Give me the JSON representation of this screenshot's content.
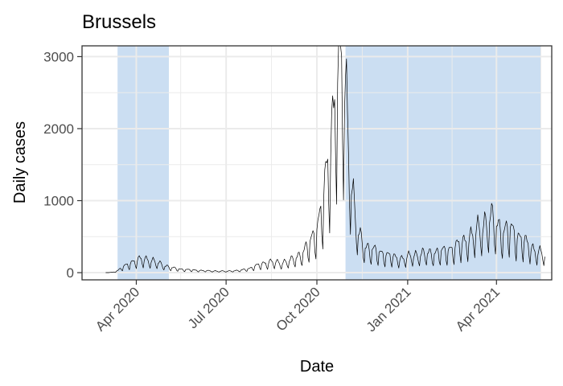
{
  "chart_data": {
    "type": "line",
    "title": "Brussels",
    "xlabel": "Date",
    "ylabel": "Daily cases",
    "xlim": [
      "2020-02-06",
      "2021-05-27"
    ],
    "ylim": [
      -100,
      3150
    ],
    "y_ticks": [
      0,
      1000,
      2000,
      3000
    ],
    "y_tick_labels": [
      "0",
      "1000",
      "2000",
      "3000"
    ],
    "x_ticks": [
      "2020-04-01",
      "2020-07-01",
      "2020-10-01",
      "2021-01-01",
      "2021-04-01"
    ],
    "x_tick_labels": [
      "Apr 2020",
      "Jul 2020",
      "Oct 2020",
      "Jan 2021",
      "Apr 2021"
    ],
    "grid": true,
    "colors": {
      "line": "#000000",
      "shade": "#a8c8ea",
      "grid": "#ebebeb",
      "border": "#333333"
    },
    "shaded_periods": [
      {
        "start": "2020-03-13",
        "end": "2020-05-04"
      },
      {
        "start": "2020-10-30",
        "end": "2021-05-16"
      }
    ],
    "series": [
      {
        "points": [
          [
            "2020-03-01",
            0
          ],
          [
            "2020-03-08",
            5
          ],
          [
            "2020-03-13",
            25
          ],
          [
            "2020-03-18",
            70
          ],
          [
            "2020-03-24",
            110
          ],
          [
            "2020-03-29",
            145
          ],
          [
            "2020-04-03",
            165
          ],
          [
            "2020-04-08",
            175
          ],
          [
            "2020-04-13",
            170
          ],
          [
            "2020-04-18",
            150
          ],
          [
            "2020-04-24",
            120
          ],
          [
            "2020-04-30",
            90
          ],
          [
            "2020-05-06",
            65
          ],
          [
            "2020-05-12",
            50
          ],
          [
            "2020-05-20",
            40
          ],
          [
            "2020-06-01",
            30
          ],
          [
            "2020-06-15",
            22
          ],
          [
            "2020-07-01",
            18
          ],
          [
            "2020-07-15",
            28
          ],
          [
            "2020-07-25",
            55
          ],
          [
            "2020-08-05",
            110
          ],
          [
            "2020-08-15",
            140
          ],
          [
            "2020-08-25",
            125
          ],
          [
            "2020-09-05",
            160
          ],
          [
            "2020-09-15",
            240
          ],
          [
            "2020-09-22",
            340
          ],
          [
            "2020-09-27",
            460
          ],
          [
            "2020-10-02",
            620
          ],
          [
            "2020-10-07",
            900
          ],
          [
            "2020-10-12",
            1350
          ],
          [
            "2020-10-17",
            1950
          ],
          [
            "2020-10-20",
            2450
          ],
          [
            "2020-10-22",
            2800
          ],
          [
            "2020-10-24",
            2950
          ],
          [
            "2020-10-27",
            2650
          ],
          [
            "2020-10-30",
            2300
          ],
          [
            "2020-11-02",
            1750
          ],
          [
            "2020-11-05",
            1200
          ],
          [
            "2020-11-08",
            800
          ],
          [
            "2020-11-12",
            500
          ],
          [
            "2020-11-17",
            360
          ],
          [
            "2020-11-24",
            300
          ],
          [
            "2020-12-01",
            270
          ],
          [
            "2020-12-10",
            230
          ],
          [
            "2020-12-20",
            190
          ],
          [
            "2020-12-28",
            180
          ],
          [
            "2021-01-05",
            220
          ],
          [
            "2021-01-15",
            240
          ],
          [
            "2021-01-25",
            250
          ],
          [
            "2021-02-05",
            270
          ],
          [
            "2021-02-15",
            310
          ],
          [
            "2021-02-25",
            380
          ],
          [
            "2021-03-07",
            470
          ],
          [
            "2021-03-14",
            560
          ],
          [
            "2021-03-21",
            640
          ],
          [
            "2021-03-26",
            690
          ],
          [
            "2021-04-01",
            620
          ],
          [
            "2021-04-08",
            520
          ],
          [
            "2021-04-15",
            560
          ],
          [
            "2021-04-22",
            470
          ],
          [
            "2021-04-29",
            400
          ],
          [
            "2021-05-06",
            320
          ],
          [
            "2021-05-13",
            270
          ],
          [
            "2021-05-20",
            230
          ]
        ]
      }
    ]
  }
}
